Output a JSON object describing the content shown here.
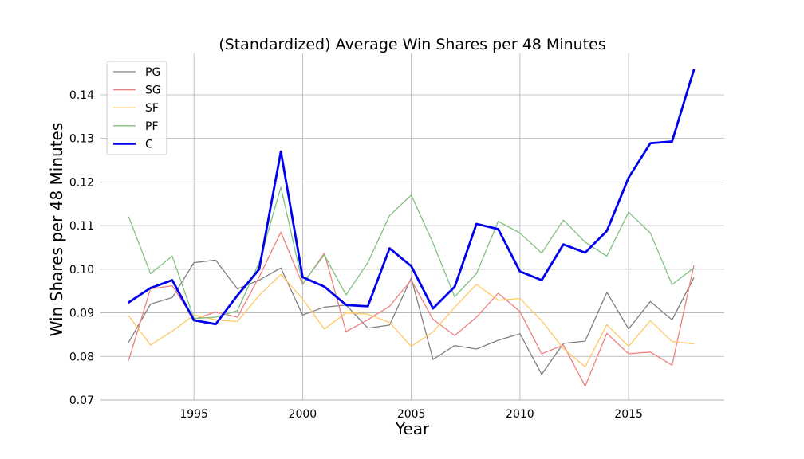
{
  "chart_data": {
    "type": "line",
    "title": "(Standardized) Average Win Shares per 48 Minutes",
    "xlabel": "Year",
    "ylabel": "Win Shares per 48 Minutes",
    "xlim": [
      1990.7,
      2019.4
    ],
    "ylim": [
      0.07,
      0.1495
    ],
    "xticks": [
      1995,
      2000,
      2005,
      2010,
      2015
    ],
    "yticks": [
      0.07,
      0.08,
      0.09,
      0.1,
      0.11,
      0.12,
      0.13,
      0.14
    ],
    "ytick_labels": [
      "0.07",
      "0.08",
      "0.09",
      "0.10",
      "0.11",
      "0.12",
      "0.13",
      "0.14"
    ],
    "grid": true,
    "legend_position": "upper-left",
    "x": [
      1992,
      1993,
      1994,
      1995,
      1996,
      1997,
      1998,
      1999,
      2000,
      2001,
      2002,
      2003,
      2004,
      2005,
      2006,
      2007,
      2008,
      2009,
      2010,
      2011,
      2012,
      2013,
      2014,
      2015,
      2016,
      2017,
      2018
    ],
    "series": [
      {
        "name": "PG",
        "color": "#808080",
        "width": 1.3,
        "opacity": 1,
        "values": [
          0.0833,
          0.092,
          0.0935,
          0.1015,
          0.1021,
          0.0955,
          0.0975,
          0.1003,
          0.0895,
          0.0913,
          0.0918,
          0.0865,
          0.0872,
          0.098,
          0.0793,
          0.0825,
          0.0817,
          0.0837,
          0.0852,
          0.0759,
          0.083,
          0.0835,
          0.0947,
          0.0863,
          0.0926,
          0.0884,
          0.098
        ]
      },
      {
        "name": "SG",
        "color": "#f08080",
        "width": 1.3,
        "opacity": 1,
        "values": [
          0.0792,
          0.0955,
          0.0962,
          0.0885,
          0.0902,
          0.089,
          0.0982,
          0.1085,
          0.0965,
          0.1037,
          0.0857,
          0.0884,
          0.0915,
          0.0975,
          0.0885,
          0.0848,
          0.089,
          0.0945,
          0.0903,
          0.0806,
          0.0826,
          0.0732,
          0.0853,
          0.0806,
          0.081,
          0.078,
          0.1008
        ]
      },
      {
        "name": "SF",
        "color": "#ffc966",
        "width": 1.3,
        "opacity": 1,
        "values": [
          0.0893,
          0.0826,
          0.0858,
          0.0895,
          0.0884,
          0.088,
          0.094,
          0.0988,
          0.0932,
          0.0863,
          0.09,
          0.0897,
          0.0878,
          0.0823,
          0.0856,
          0.0913,
          0.0965,
          0.0929,
          0.0933,
          0.0882,
          0.0818,
          0.0776,
          0.0873,
          0.0823,
          0.0882,
          0.0834,
          0.0829
        ]
      },
      {
        "name": "PF",
        "color": "#80c080",
        "width": 1.3,
        "opacity": 1,
        "values": [
          0.112,
          0.099,
          0.103,
          0.0887,
          0.089,
          0.0905,
          0.1015,
          0.1188,
          0.0967,
          0.1033,
          0.0941,
          0.1015,
          0.1123,
          0.117,
          0.106,
          0.0937,
          0.099,
          0.111,
          0.1083,
          0.1037,
          0.1113,
          0.1062,
          0.103,
          0.1131,
          0.1083,
          0.0965,
          0.1003
        ]
      },
      {
        "name": "C",
        "color": "#0000ee",
        "width": 2.8,
        "opacity": 1,
        "values": [
          0.0924,
          0.0957,
          0.0975,
          0.0883,
          0.0874,
          0.094,
          0.1,
          0.127,
          0.0982,
          0.096,
          0.0918,
          0.0915,
          0.1048,
          0.1007,
          0.091,
          0.096,
          0.1104,
          0.1092,
          0.0995,
          0.0975,
          0.1057,
          0.1038,
          0.1088,
          0.121,
          0.1289,
          0.1293,
          0.1457
        ]
      }
    ]
  }
}
